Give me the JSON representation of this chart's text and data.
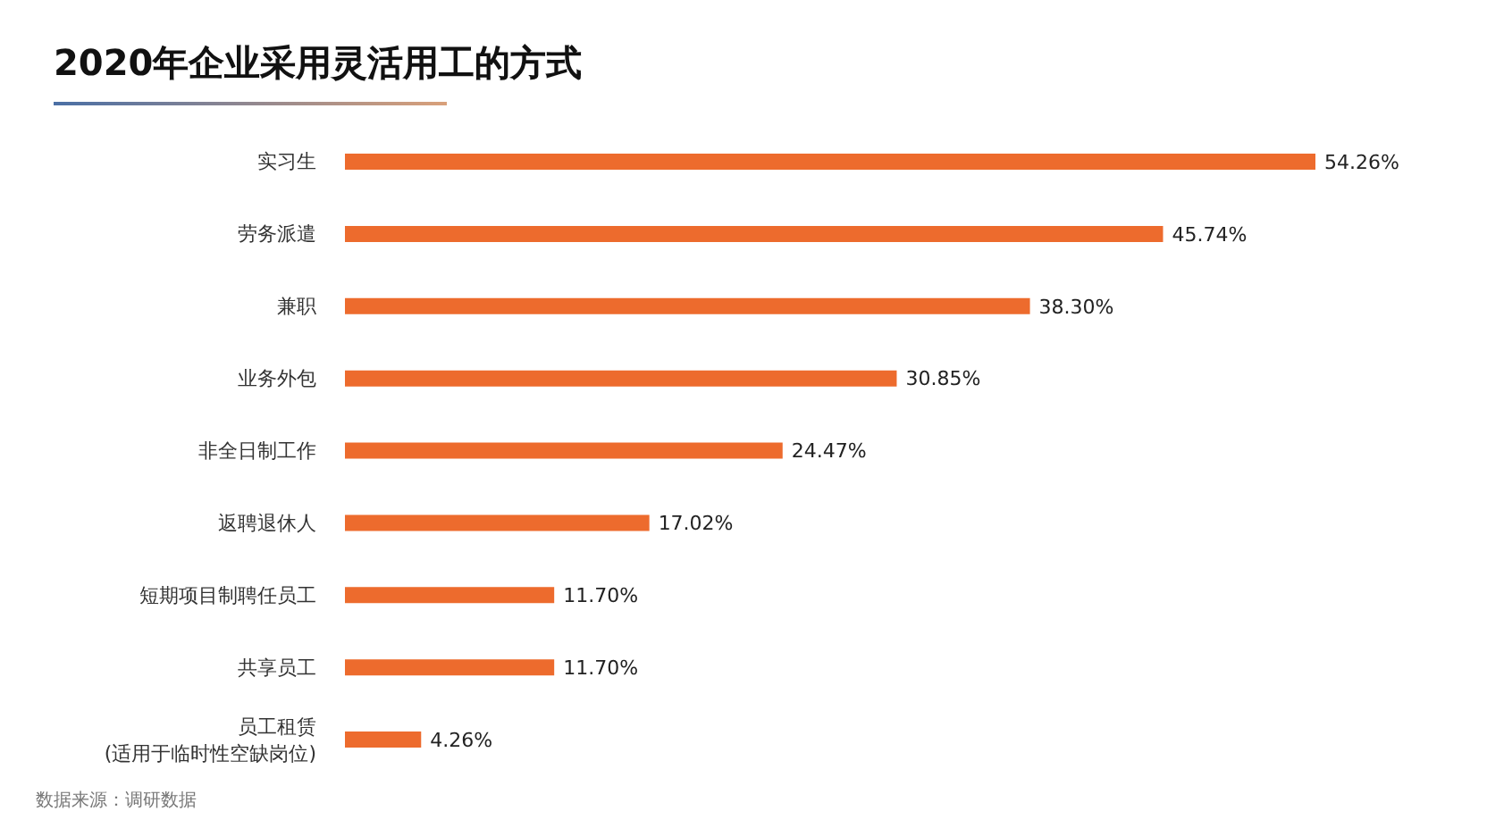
{
  "chart_data": {
    "type": "bar",
    "orientation": "horizontal",
    "title": "2020年企业采用灵活用工的方式",
    "categories": [
      "实习生",
      "劳务派遣",
      "兼职",
      "业务外包",
      "非全日制工作",
      "返聘退休人",
      "短期项目制聘任员工",
      "共享员工",
      "员工租赁\n(适用于临时性空缺岗位)"
    ],
    "values": [
      54.26,
      45.74,
      38.3,
      30.85,
      24.47,
      17.02,
      11.7,
      11.7,
      4.26
    ],
    "value_labels": [
      "54.26%",
      "45.74%",
      "38.30%",
      "30.85%",
      "24.47%",
      "17.02%",
      "11.70%",
      "11.70%",
      "4.26%"
    ],
    "color": "#ed6b2d",
    "annotations": [
      "数据来源：调研数据"
    ]
  }
}
